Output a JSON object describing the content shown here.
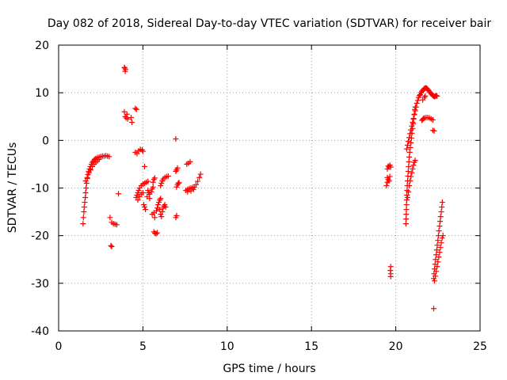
{
  "chart_data": {
    "type": "scatter",
    "title": "Day 082 of 2018, Sidereal Day-to-day VTEC variation (SDTVAR) for receiver bair",
    "xlabel": "GPS time / hours",
    "ylabel": "SDTVAR / TECUs",
    "xlim": [
      0,
      25
    ],
    "ylim": [
      -40,
      20
    ],
    "x_ticks": [
      0,
      5,
      10,
      15,
      20,
      25
    ],
    "x_tick_labels": [
      "0",
      "5",
      "10",
      "15",
      "20",
      "25"
    ],
    "y_ticks": [
      -40,
      -30,
      -20,
      -10,
      0,
      10,
      20
    ],
    "y_tick_labels": [
      "-40",
      "-30",
      "-20",
      "-10",
      "0",
      "10",
      "20"
    ],
    "grid": true,
    "marker": "plus",
    "series": [
      {
        "name": "SDTVAR",
        "color": "#ff0000",
        "points": [
          [
            1.45,
            -17.5
          ],
          [
            1.47,
            -16.2
          ],
          [
            1.5,
            -15
          ],
          [
            1.52,
            -14
          ],
          [
            1.55,
            -13
          ],
          [
            1.58,
            -12
          ],
          [
            1.6,
            -11
          ],
          [
            1.63,
            -10
          ],
          [
            1.66,
            -9
          ],
          [
            1.7,
            -8
          ],
          [
            1.74,
            -7.2
          ],
          [
            1.78,
            -6.5
          ],
          [
            1.83,
            -6
          ],
          [
            1.88,
            -5.5
          ],
          [
            1.94,
            -5
          ],
          [
            2.0,
            -4.6
          ],
          [
            2.06,
            -4.3
          ],
          [
            2.13,
            -4.0
          ],
          [
            2.2,
            -3.8
          ],
          [
            2.3,
            -3.6
          ],
          [
            2.4,
            -3.5
          ],
          [
            2.5,
            -3.4
          ],
          [
            2.6,
            -3.3
          ],
          [
            2.7,
            -3.3
          ],
          [
            2.8,
            -3.2
          ],
          [
            2.9,
            -3.3
          ],
          [
            3.0,
            -3.4
          ],
          [
            1.6,
            -8.5
          ],
          [
            1.7,
            -7.8
          ],
          [
            1.8,
            -6.8
          ],
          [
            1.9,
            -6.2
          ],
          [
            2.0,
            -5.5
          ],
          [
            2.1,
            -5.0
          ],
          [
            2.2,
            -4.6
          ],
          [
            2.3,
            -4.3
          ],
          [
            2.4,
            -4.0
          ],
          [
            3.05,
            -16.2
          ],
          [
            3.15,
            -17.2
          ],
          [
            3.25,
            -17.5
          ],
          [
            3.35,
            -17.6
          ],
          [
            3.45,
            -17.7
          ],
          [
            3.1,
            -22.1
          ],
          [
            3.15,
            -22.3
          ],
          [
            3.55,
            -11.2
          ],
          [
            3.92,
            15.2
          ],
          [
            3.95,
            14.5
          ],
          [
            3.97,
            14.9
          ],
          [
            3.9,
            15.3
          ],
          [
            3.9,
            6.0
          ],
          [
            3.95,
            5.0
          ],
          [
            4.0,
            4.7
          ],
          [
            4.1,
            4.5
          ],
          [
            4.05,
            5.5
          ],
          [
            4.3,
            4.8
          ],
          [
            4.35,
            3.8
          ],
          [
            4.55,
            6.7
          ],
          [
            4.62,
            6.5
          ],
          [
            4.55,
            -2.5
          ],
          [
            4.65,
            -2.8
          ],
          [
            4.75,
            -2.2
          ],
          [
            4.85,
            -1.9
          ],
          [
            4.95,
            -2.0
          ],
          [
            5.0,
            -2.3
          ],
          [
            4.6,
            -12
          ],
          [
            4.65,
            -11.5
          ],
          [
            4.7,
            -11
          ],
          [
            4.75,
            -10.5
          ],
          [
            4.8,
            -10
          ],
          [
            4.9,
            -9.5
          ],
          [
            5.0,
            -9.2
          ],
          [
            5.1,
            -9
          ],
          [
            5.2,
            -8.8
          ],
          [
            5.3,
            -8.6
          ],
          [
            4.7,
            -12.5
          ],
          [
            4.8,
            -11.8
          ],
          [
            4.9,
            -11.3
          ],
          [
            5.0,
            -11
          ],
          [
            5.1,
            -5.5
          ],
          [
            5.3,
            -10.5
          ],
          [
            5.35,
            -11
          ],
          [
            5.4,
            -11.3
          ],
          [
            5.5,
            -10.8
          ],
          [
            5.55,
            -10.2
          ],
          [
            5.6,
            -9.8
          ],
          [
            5.6,
            -8.8
          ],
          [
            5.65,
            -8.2
          ],
          [
            5.7,
            -7.9
          ],
          [
            5.25,
            -11.8
          ],
          [
            5.4,
            -12.2
          ],
          [
            5.05,
            -13.5
          ],
          [
            5.1,
            -14
          ],
          [
            5.15,
            -14.5
          ],
          [
            5.55,
            -15.5
          ],
          [
            5.65,
            -15.2
          ],
          [
            5.7,
            -16.2
          ],
          [
            5.8,
            -14.8
          ],
          [
            5.85,
            -14.2
          ],
          [
            5.9,
            -13.5
          ],
          [
            5.95,
            -13
          ],
          [
            6.0,
            -12.5
          ],
          [
            6.05,
            -12.2
          ],
          [
            5.65,
            -19.2
          ],
          [
            5.72,
            -19.5
          ],
          [
            5.78,
            -19.6
          ],
          [
            5.85,
            -19.4
          ],
          [
            6.0,
            -14.5
          ],
          [
            6.05,
            -15.5
          ],
          [
            6.1,
            -16
          ],
          [
            6.15,
            -15
          ],
          [
            6.2,
            -14.2
          ],
          [
            6.25,
            -13.8
          ],
          [
            6.3,
            -13.5
          ],
          [
            6.35,
            -14
          ],
          [
            6.05,
            -9.5
          ],
          [
            6.1,
            -9
          ],
          [
            6.15,
            -8.5
          ],
          [
            6.2,
            -8.1
          ],
          [
            6.3,
            -7.8
          ],
          [
            6.4,
            -7.6
          ],
          [
            6.5,
            -7.5
          ],
          [
            6.95,
            0.3
          ],
          [
            6.95,
            -16.2
          ],
          [
            7.0,
            -15.8
          ],
          [
            6.95,
            -6.5
          ],
          [
            7.0,
            -6.2
          ],
          [
            7.05,
            -5.8
          ],
          [
            7.0,
            -9.8
          ],
          [
            7.05,
            -9.3
          ],
          [
            7.1,
            -9.0
          ],
          [
            7.15,
            -8.9
          ],
          [
            7.55,
            -10.5
          ],
          [
            7.65,
            -10.3
          ],
          [
            7.75,
            -10.1
          ],
          [
            7.85,
            -10.0
          ],
          [
            7.95,
            -9.9
          ],
          [
            8.05,
            -9.8
          ],
          [
            8.15,
            -9.3
          ],
          [
            8.25,
            -8.6
          ],
          [
            8.35,
            -7.8
          ],
          [
            8.42,
            -7.1
          ],
          [
            7.6,
            -5.0
          ],
          [
            7.7,
            -4.8
          ],
          [
            7.8,
            -4.5
          ],
          [
            7.65,
            -10.8
          ],
          [
            7.85,
            -10.6
          ],
          [
            8.0,
            -10.3
          ],
          [
            19.45,
            -9.5
          ],
          [
            19.5,
            -8.8
          ],
          [
            19.55,
            -8.2
          ],
          [
            19.5,
            -7.8
          ],
          [
            19.6,
            -8.5
          ],
          [
            19.65,
            -7.6
          ],
          [
            19.5,
            -6
          ],
          [
            19.55,
            -5.4
          ],
          [
            19.6,
            -5.6
          ],
          [
            19.65,
            -5.2
          ],
          [
            19.7,
            -5.6
          ],
          [
            19.7,
            -26.5
          ],
          [
            19.68,
            -27.3
          ],
          [
            19.7,
            -28
          ],
          [
            19.7,
            -28.6
          ],
          [
            20.6,
            -17.5
          ],
          [
            20.61,
            -16.5
          ],
          [
            20.62,
            -15.5
          ],
          [
            20.63,
            -14.5
          ],
          [
            20.64,
            -13.5
          ],
          [
            20.65,
            -12.5
          ],
          [
            20.66,
            -11.5
          ],
          [
            20.67,
            -10.5
          ],
          [
            20.68,
            -9.5
          ],
          [
            20.7,
            -8.5
          ],
          [
            20.72,
            -7.5
          ],
          [
            20.74,
            -6.5
          ],
          [
            20.76,
            -5.5
          ],
          [
            20.78,
            -4.5
          ],
          [
            20.8,
            -3.5
          ],
          [
            20.83,
            -2.5
          ],
          [
            20.86,
            -1.5
          ],
          [
            20.9,
            -0.5
          ],
          [
            20.93,
            0.5
          ],
          [
            20.96,
            1.5
          ],
          [
            21.0,
            2.5
          ],
          [
            21.03,
            3.5
          ],
          [
            21.06,
            4.5
          ],
          [
            21.1,
            5.5
          ],
          [
            21.13,
            6.5
          ],
          [
            21.16,
            7.0
          ],
          [
            20.7,
            -12
          ],
          [
            20.75,
            -10.8
          ],
          [
            20.8,
            -9.5
          ],
          [
            20.85,
            -8.5
          ],
          [
            20.9,
            -7.6
          ],
          [
            20.95,
            -6.8
          ],
          [
            21.0,
            -6.0
          ],
          [
            21.05,
            -5.2
          ],
          [
            21.1,
            -4.6
          ],
          [
            21.15,
            -4.2
          ],
          [
            20.65,
            -1.8
          ],
          [
            20.7,
            -1.0
          ],
          [
            20.75,
            -0.2
          ],
          [
            20.8,
            0.6
          ],
          [
            20.85,
            1.4
          ],
          [
            20.9,
            2.2
          ],
          [
            20.95,
            3.0
          ],
          [
            21.0,
            3.8
          ],
          [
            21.05,
            4.6
          ],
          [
            21.1,
            5.4
          ],
          [
            21.15,
            6.2
          ],
          [
            21.2,
            7.0
          ],
          [
            21.25,
            7.8
          ],
          [
            21.3,
            8.4
          ],
          [
            21.35,
            9.0
          ],
          [
            21.4,
            9.4
          ],
          [
            21.45,
            9.6
          ],
          [
            21.5,
            10.0
          ],
          [
            21.55,
            10.3
          ],
          [
            21.6,
            10.5
          ],
          [
            21.65,
            10.7
          ],
          [
            21.7,
            10.9
          ],
          [
            21.75,
            11.0
          ],
          [
            21.8,
            11.0
          ],
          [
            21.85,
            10.9
          ],
          [
            21.9,
            10.7
          ],
          [
            21.95,
            10.5
          ],
          [
            22.0,
            10.2
          ],
          [
            22.05,
            10.0
          ],
          [
            22.1,
            9.8
          ],
          [
            22.15,
            9.6
          ],
          [
            22.2,
            9.4
          ],
          [
            22.25,
            9.3
          ],
          [
            22.3,
            9.2
          ],
          [
            22.35,
            9.3
          ],
          [
            22.4,
            9.4
          ],
          [
            22.45,
            9.3
          ],
          [
            21.55,
            4.2
          ],
          [
            21.6,
            4.4
          ],
          [
            21.65,
            4.6
          ],
          [
            21.7,
            4.7
          ],
          [
            21.8,
            4.8
          ],
          [
            21.9,
            4.8
          ],
          [
            22.0,
            4.7
          ],
          [
            22.1,
            4.5
          ],
          [
            22.2,
            4.3
          ],
          [
            21.6,
            8.5
          ],
          [
            21.7,
            9.0
          ],
          [
            21.75,
            9.3
          ],
          [
            22.2,
            2.1
          ],
          [
            22.28,
            2.0
          ],
          [
            22.25,
            -29
          ],
          [
            22.27,
            -28
          ],
          [
            22.3,
            -27
          ],
          [
            22.33,
            -26
          ],
          [
            22.36,
            -25
          ],
          [
            22.4,
            -24
          ],
          [
            22.43,
            -23
          ],
          [
            22.46,
            -22
          ],
          [
            22.5,
            -21
          ],
          [
            22.53,
            -20
          ],
          [
            22.56,
            -19
          ],
          [
            22.6,
            -18
          ],
          [
            22.63,
            -17
          ],
          [
            22.66,
            -16
          ],
          [
            22.7,
            -15
          ],
          [
            22.73,
            -14
          ],
          [
            22.76,
            -13
          ],
          [
            22.3,
            -29.5
          ],
          [
            22.35,
            -28.5
          ],
          [
            22.4,
            -27.5
          ],
          [
            22.45,
            -26.5
          ],
          [
            22.5,
            -25.5
          ],
          [
            22.55,
            -24.5
          ],
          [
            22.6,
            -23.5
          ],
          [
            22.65,
            -22.5
          ],
          [
            22.7,
            -21.5
          ],
          [
            22.75,
            -20.5
          ],
          [
            22.8,
            -20
          ],
          [
            22.25,
            -35.3
          ]
        ]
      }
    ]
  }
}
